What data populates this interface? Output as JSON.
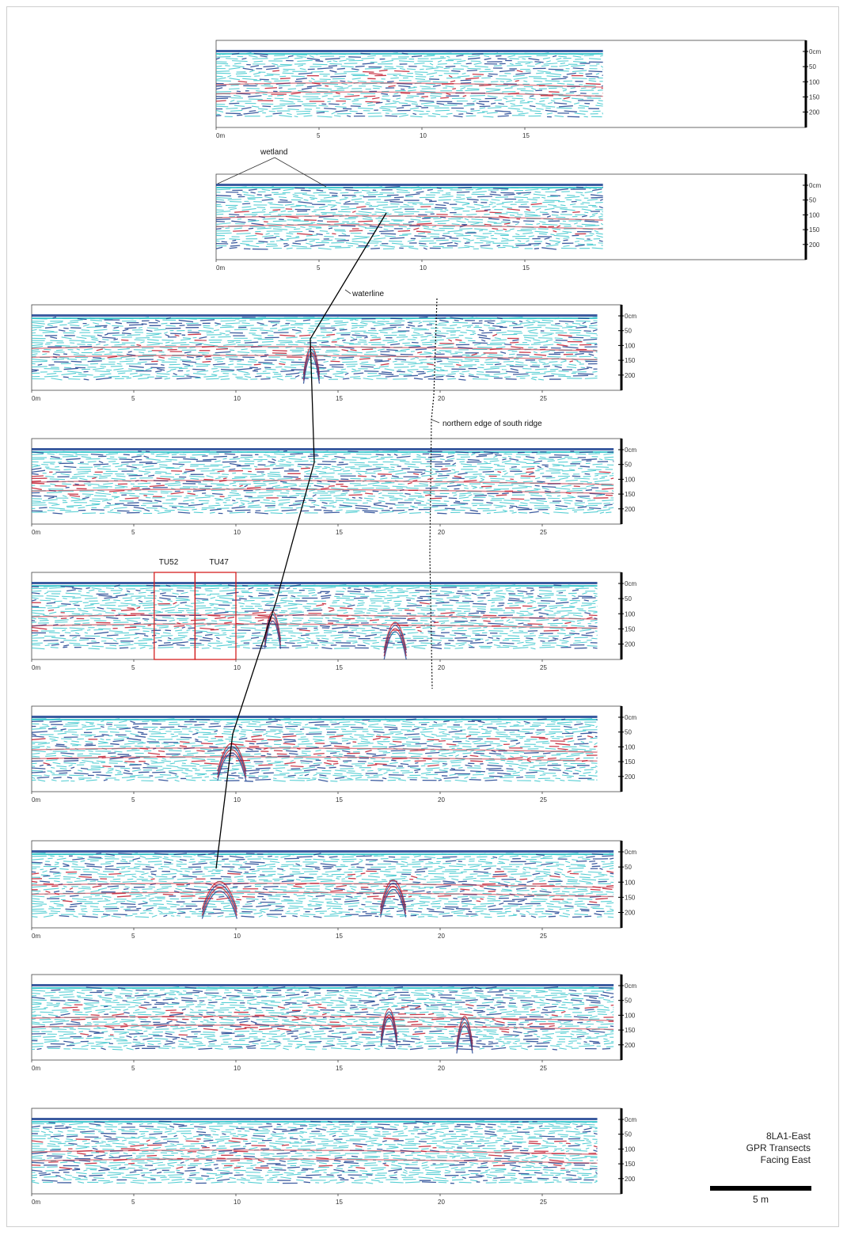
{
  "depth_labels": [
    "0cm",
    "50",
    "100",
    "150",
    "200"
  ],
  "distance_labels_short": [
    "0m",
    "5",
    "10",
    "15"
  ],
  "distance_labels_long": [
    "0m",
    "5",
    "10",
    "15",
    "20",
    "25"
  ],
  "annotations": {
    "wetland": "wetland",
    "waterline": "waterline",
    "northern_edge": "northern edge of south ridge",
    "tu52": "TU52",
    "tu47": "TU47"
  },
  "legend": {
    "line1": "8LA1-East",
    "line2": "GPR Transects",
    "line3": "Facing East",
    "scale_label": "5 m"
  },
  "colors": {
    "reflection_red": "#c0182b",
    "reflection_blue": "#1a3f8f",
    "reflection_cyan": "#39c6cc",
    "test_unit_box": "#d42020"
  },
  "transects": [
    {
      "id": "transect-1",
      "length_m": 18.8
    },
    {
      "id": "transect-2",
      "length_m": 18.8
    },
    {
      "id": "transect-3",
      "length_m": 27.7
    },
    {
      "id": "transect-4",
      "length_m": 28.5
    },
    {
      "id": "transect-5",
      "length_m": 27.7
    },
    {
      "id": "transect-6",
      "length_m": 27.7
    },
    {
      "id": "transect-7",
      "length_m": 28.5
    },
    {
      "id": "transect-8",
      "length_m": 28.5
    },
    {
      "id": "transect-9",
      "length_m": 27.7
    }
  ]
}
